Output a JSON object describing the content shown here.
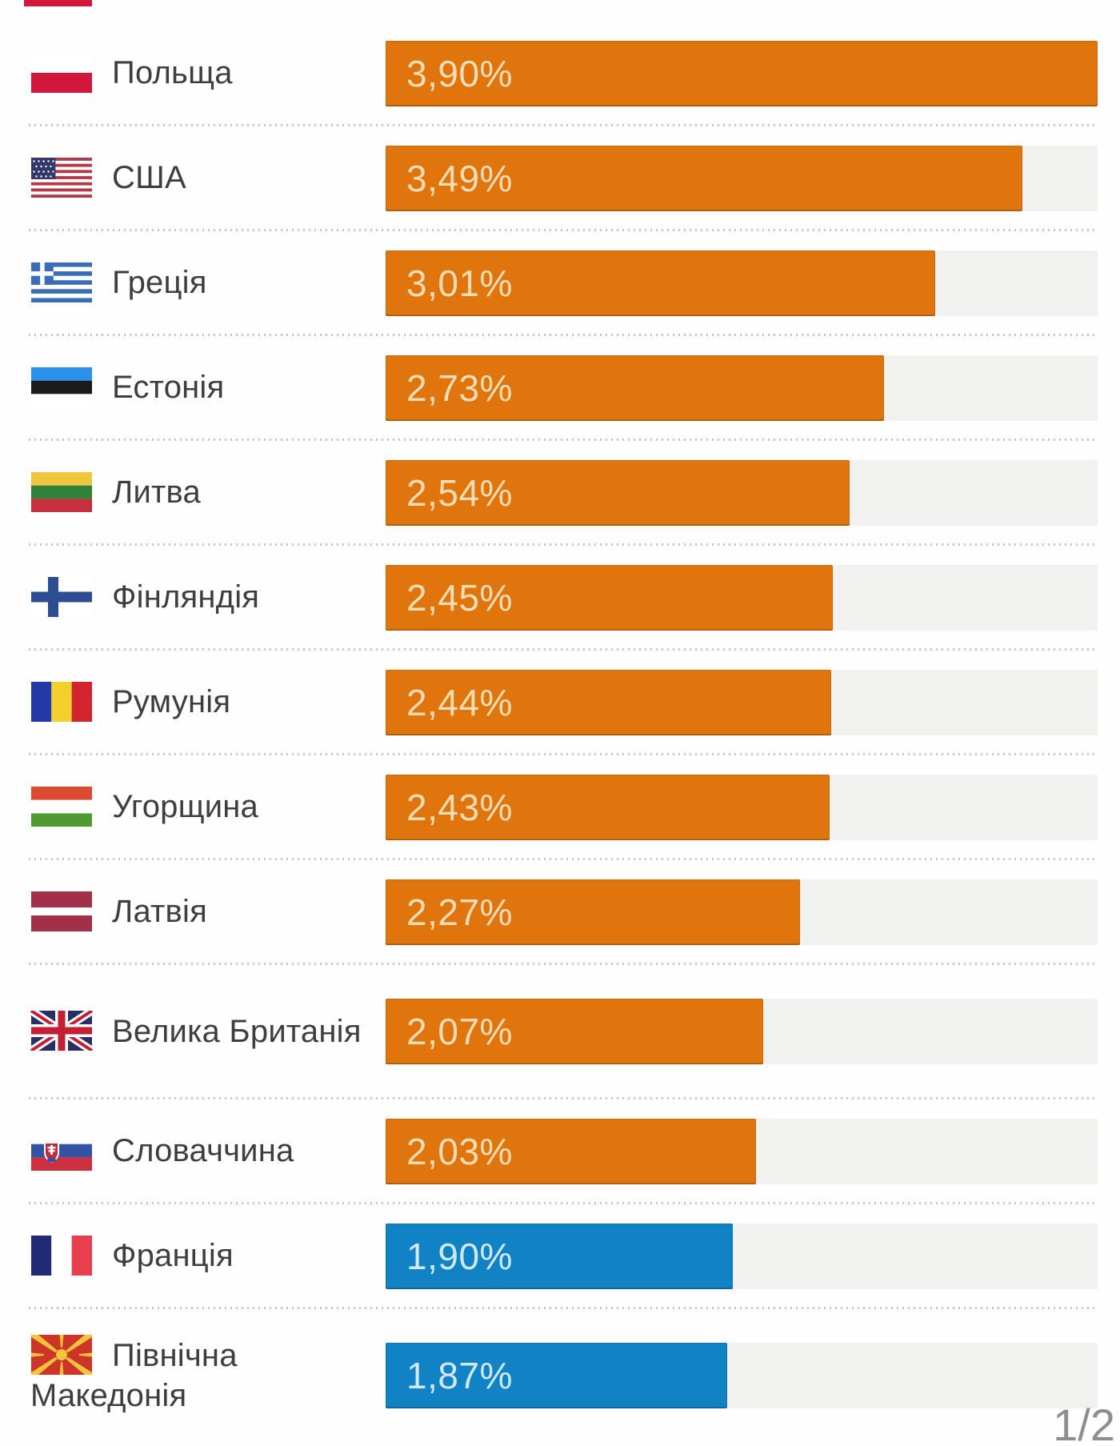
{
  "chart_data": {
    "type": "bar",
    "orientation": "horizontal",
    "categories": [
      "Польща",
      "США",
      "Греція",
      "Естонія",
      "Литва",
      "Фінляндія",
      "Румунія",
      "Угорщина",
      "Латвія",
      "Велика Британія",
      "Словаччина",
      "Франція",
      "Північна Македонія"
    ],
    "values": [
      3.9,
      3.49,
      3.01,
      2.73,
      2.54,
      2.45,
      2.44,
      2.43,
      2.27,
      2.07,
      2.03,
      1.9,
      1.87
    ],
    "value_labels": [
      "3,90%",
      "3,49%",
      "3,01%",
      "2,73%",
      "2,54%",
      "2,45%",
      "2,44%",
      "2,43%",
      "2,27%",
      "2,07%",
      "2,03%",
      "1,90%",
      "1,87%"
    ],
    "bar_colors": [
      "#e0750d",
      "#e0750d",
      "#e0750d",
      "#e0750d",
      "#e0750d",
      "#e0750d",
      "#e0750d",
      "#e0750d",
      "#e0750d",
      "#e0750d",
      "#e0750d",
      "#1182c4",
      "#1182c4"
    ],
    "xlim": [
      0,
      3.9
    ],
    "grid": false,
    "legend": false,
    "value_label_position": "inside-left"
  },
  "rows": [
    {
      "country": "Польща",
      "flag": "flag-poland-icon",
      "value_label": "3,90%",
      "value": 3.9,
      "color": "orange"
    },
    {
      "country": "США",
      "flag": "flag-usa-icon",
      "value_label": "3,49%",
      "value": 3.49,
      "color": "orange"
    },
    {
      "country": "Греція",
      "flag": "flag-greece-icon",
      "value_label": "3,01%",
      "value": 3.01,
      "color": "orange"
    },
    {
      "country": "Естонія",
      "flag": "flag-estonia-icon",
      "value_label": "2,73%",
      "value": 2.73,
      "color": "orange"
    },
    {
      "country": "Литва",
      "flag": "flag-lithuania-icon",
      "value_label": "2,54%",
      "value": 2.54,
      "color": "orange"
    },
    {
      "country": "Фінляндія",
      "flag": "flag-finland-icon",
      "value_label": "2,45%",
      "value": 2.45,
      "color": "orange"
    },
    {
      "country": "Румунія",
      "flag": "flag-romania-icon",
      "value_label": "2,44%",
      "value": 2.44,
      "color": "orange"
    },
    {
      "country": "Угорщина",
      "flag": "flag-hungary-icon",
      "value_label": "2,43%",
      "value": 2.43,
      "color": "orange"
    },
    {
      "country": "Латвія",
      "flag": "flag-latvia-icon",
      "value_label": "2,27%",
      "value": 2.27,
      "color": "orange"
    },
    {
      "country": "Велика Британія",
      "flag": "flag-uk-icon",
      "value_label": "2,07%",
      "value": 2.07,
      "color": "orange"
    },
    {
      "country": "Словаччина",
      "flag": "flag-slovakia-icon",
      "value_label": "2,03%",
      "value": 2.03,
      "color": "orange"
    },
    {
      "country": "Франція",
      "flag": "flag-france-icon",
      "value_label": "1,90%",
      "value": 1.9,
      "color": "blue"
    },
    {
      "country": "Північна Македонія",
      "flag": "flag-macedonia-icon",
      "value_label": "1,87%",
      "value": 1.87,
      "color": "blue"
    }
  ],
  "page_indicator": "1/2",
  "colors": {
    "orange": "#e0750d",
    "blue": "#1182c4",
    "orange_text": "#f7ddb5",
    "blue_text": "#cfe9f7",
    "track": "#f1f1ef",
    "label_text": "#3e3e3e",
    "separator": "#c6c6c6",
    "page_number": "#8e8e8e"
  }
}
